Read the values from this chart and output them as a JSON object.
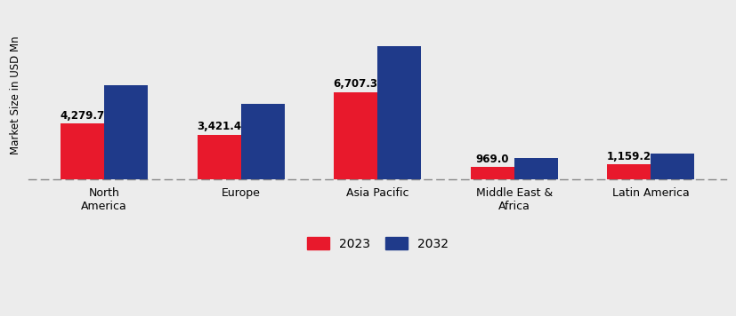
{
  "categories": [
    "North\nAmerica",
    "Europe",
    "Asia Pacific",
    "Middle East &\nAfrica",
    "Latin America"
  ],
  "values_2023": [
    4279.7,
    3421.4,
    6707.3,
    969.0,
    1159.2
  ],
  "values_2032": [
    7200.0,
    5800.0,
    10200.0,
    1650.0,
    2000.0
  ],
  "labels_2023": [
    "4,279.7",
    "3,421.4",
    "6,707.3",
    "969.0",
    "1,159.2"
  ],
  "color_2023": "#e8192c",
  "color_2032": "#1f3a8a",
  "ylabel": "Market Size in USD Mn",
  "bar_width": 0.32,
  "background_color": "#ececec",
  "ylim": [
    0,
    13000
  ],
  "legend_labels": [
    "2023",
    "2032"
  ],
  "dpi": 100,
  "label_fontsize": 8.5,
  "tick_fontsize": 9
}
